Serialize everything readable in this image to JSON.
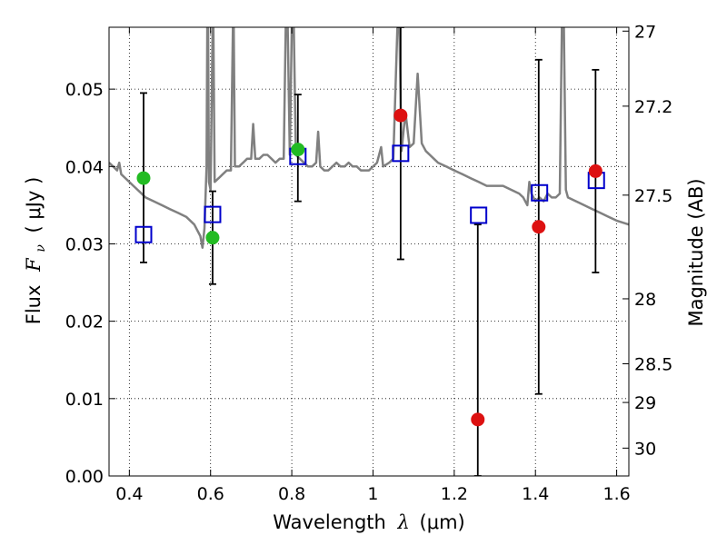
{
  "chart_data": {
    "type": "scatter",
    "title": "",
    "xlabel_prefix": "Wavelength",
    "xlabel_symbol": "λ",
    "xlabel_unit": "(μm)",
    "ylabel_prefix": "Flux",
    "ylabel_symbol": "F",
    "ylabel_subscript": "ν",
    "ylabel_unit": "( μJy )",
    "y2label": "Magnitude (AB)",
    "xlim": [
      0.35,
      1.63
    ],
    "ylim": [
      0.0,
      0.058
    ],
    "grid": true,
    "x_ticks": [
      0.4,
      0.6,
      0.8,
      1.0,
      1.2,
      1.4,
      1.6
    ],
    "x_tick_labels": [
      "0.4",
      "0.6",
      "0.8",
      "1",
      "1.2",
      "1.4",
      "1.6"
    ],
    "y_ticks": [
      0.0,
      0.01,
      0.02,
      0.03,
      0.04,
      0.05
    ],
    "y_tick_labels": [
      "0.00",
      "0.01",
      "0.02",
      "0.03",
      "0.04",
      "0.05"
    ],
    "magnitude_ticks": [
      {
        "label": "27",
        "flux": 0.0575
      },
      {
        "label": "27.2",
        "flux": 0.0478
      },
      {
        "label": "27.5",
        "flux": 0.0363
      },
      {
        "label": "28",
        "flux": 0.0229
      },
      {
        "label": "28.5",
        "flux": 0.0145
      },
      {
        "label": "29",
        "flux": 0.0095
      },
      {
        "label": "30",
        "flux": 0.0036
      }
    ],
    "series": [
      {
        "name": "model-spectrum",
        "type": "line",
        "color": "#808080",
        "points": [
          [
            0.35,
            0.0405
          ],
          [
            0.36,
            0.04
          ],
          [
            0.37,
            0.0395
          ],
          [
            0.375,
            0.0405
          ],
          [
            0.38,
            0.039
          ],
          [
            0.39,
            0.0385
          ],
          [
            0.4,
            0.038
          ],
          [
            0.41,
            0.0375
          ],
          [
            0.42,
            0.037
          ],
          [
            0.43,
            0.0365
          ],
          [
            0.44,
            0.036
          ],
          [
            0.46,
            0.0355
          ],
          [
            0.48,
            0.035
          ],
          [
            0.5,
            0.0345
          ],
          [
            0.52,
            0.034
          ],
          [
            0.54,
            0.0335
          ],
          [
            0.56,
            0.0325
          ],
          [
            0.575,
            0.031
          ],
          [
            0.58,
            0.0295
          ],
          [
            0.585,
            0.032
          ],
          [
            0.59,
            0.04
          ],
          [
            0.592,
            0.058
          ],
          [
            0.594,
            0.058
          ],
          [
            0.596,
            0.038
          ],
          [
            0.6,
            0.037
          ],
          [
            0.605,
            0.058
          ],
          [
            0.607,
            0.058
          ],
          [
            0.61,
            0.038
          ],
          [
            0.62,
            0.0385
          ],
          [
            0.63,
            0.039
          ],
          [
            0.64,
            0.0395
          ],
          [
            0.65,
            0.0395
          ],
          [
            0.655,
            0.058
          ],
          [
            0.657,
            0.058
          ],
          [
            0.66,
            0.04
          ],
          [
            0.67,
            0.04
          ],
          [
            0.68,
            0.0405
          ],
          [
            0.69,
            0.041
          ],
          [
            0.7,
            0.041
          ],
          [
            0.705,
            0.0455
          ],
          [
            0.71,
            0.041
          ],
          [
            0.72,
            0.041
          ],
          [
            0.73,
            0.0415
          ],
          [
            0.74,
            0.0415
          ],
          [
            0.75,
            0.041
          ],
          [
            0.76,
            0.0405
          ],
          [
            0.77,
            0.041
          ],
          [
            0.78,
            0.041
          ],
          [
            0.785,
            0.058
          ],
          [
            0.79,
            0.058
          ],
          [
            0.795,
            0.0415
          ],
          [
            0.8,
            0.058
          ],
          [
            0.805,
            0.058
          ],
          [
            0.81,
            0.0415
          ],
          [
            0.82,
            0.041
          ],
          [
            0.83,
            0.0405
          ],
          [
            0.84,
            0.04
          ],
          [
            0.85,
            0.04
          ],
          [
            0.86,
            0.0405
          ],
          [
            0.865,
            0.0445
          ],
          [
            0.87,
            0.04
          ],
          [
            0.88,
            0.0395
          ],
          [
            0.89,
            0.0395
          ],
          [
            0.9,
            0.04
          ],
          [
            0.91,
            0.0405
          ],
          [
            0.92,
            0.04
          ],
          [
            0.93,
            0.04
          ],
          [
            0.94,
            0.0405
          ],
          [
            0.95,
            0.04
          ],
          [
            0.96,
            0.04
          ],
          [
            0.97,
            0.0395
          ],
          [
            0.98,
            0.0395
          ],
          [
            0.99,
            0.0395
          ],
          [
            1.0,
            0.04
          ],
          [
            1.01,
            0.0405
          ],
          [
            1.02,
            0.0425
          ],
          [
            1.025,
            0.04
          ],
          [
            1.04,
            0.0405
          ],
          [
            1.05,
            0.041
          ],
          [
            1.06,
            0.058
          ],
          [
            1.065,
            0.058
          ],
          [
            1.07,
            0.042
          ],
          [
            1.08,
            0.047
          ],
          [
            1.09,
            0.0425
          ],
          [
            1.1,
            0.043
          ],
          [
            1.11,
            0.052
          ],
          [
            1.12,
            0.043
          ],
          [
            1.13,
            0.042
          ],
          [
            1.14,
            0.0415
          ],
          [
            1.15,
            0.041
          ],
          [
            1.16,
            0.0405
          ],
          [
            1.18,
            0.04
          ],
          [
            1.2,
            0.0395
          ],
          [
            1.22,
            0.039
          ],
          [
            1.24,
            0.0385
          ],
          [
            1.26,
            0.038
          ],
          [
            1.28,
            0.0375
          ],
          [
            1.3,
            0.0375
          ],
          [
            1.32,
            0.0375
          ],
          [
            1.34,
            0.037
          ],
          [
            1.36,
            0.0365
          ],
          [
            1.37,
            0.036
          ],
          [
            1.38,
            0.035
          ],
          [
            1.385,
            0.038
          ],
          [
            1.39,
            0.0365
          ],
          [
            1.4,
            0.0355
          ],
          [
            1.41,
            0.036
          ],
          [
            1.42,
            0.0355
          ],
          [
            1.43,
            0.0365
          ],
          [
            1.44,
            0.036
          ],
          [
            1.45,
            0.036
          ],
          [
            1.46,
            0.0365
          ],
          [
            1.465,
            0.058
          ],
          [
            1.47,
            0.058
          ],
          [
            1.475,
            0.037
          ],
          [
            1.48,
            0.036
          ],
          [
            1.5,
            0.0355
          ],
          [
            1.52,
            0.035
          ],
          [
            1.54,
            0.0345
          ],
          [
            1.56,
            0.034
          ],
          [
            1.58,
            0.0335
          ],
          [
            1.6,
            0.033
          ],
          [
            1.63,
            0.0325
          ]
        ]
      },
      {
        "name": "observed-green",
        "type": "scatter",
        "marker": "circle",
        "color": "#22bb22",
        "x": [
          0.435,
          0.605,
          0.815
        ],
        "y": [
          0.0385,
          0.0308,
          0.0422
        ],
        "yerr_low": [
          0.0276,
          0.0248,
          0.0355
        ],
        "yerr_high": [
          0.0495,
          0.0368,
          0.0493
        ]
      },
      {
        "name": "observed-red",
        "type": "scatter",
        "marker": "circle",
        "color": "#dd1111",
        "x": [
          1.068,
          1.258,
          1.408,
          1.548
        ],
        "y": [
          0.0466,
          0.0073,
          0.0322,
          0.0394
        ],
        "yerr_low": [
          0.028,
          0.0,
          0.0106,
          0.0263
        ],
        "yerr_high": [
          0.058,
          0.0325,
          0.0538,
          0.0525
        ]
      },
      {
        "name": "model-bandpass",
        "type": "scatter",
        "marker": "square-open",
        "color": "#0000cc",
        "x": [
          0.435,
          0.605,
          0.815,
          1.068,
          1.26,
          1.41,
          1.55
        ],
        "y": [
          0.0312,
          0.0338,
          0.0413,
          0.0417,
          0.0337,
          0.0366,
          0.0382
        ]
      }
    ]
  }
}
